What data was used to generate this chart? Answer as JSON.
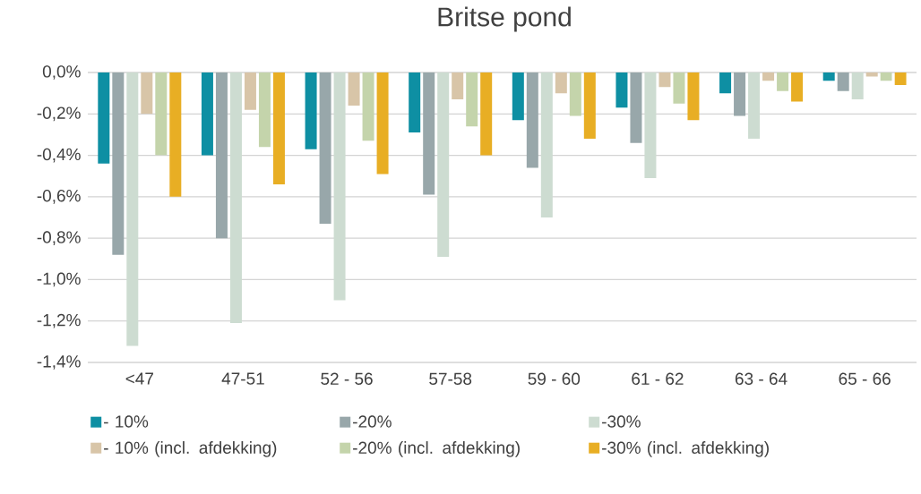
{
  "chart_data": {
    "type": "bar",
    "title": "Britse pond",
    "categories": [
      "<47",
      "47-51",
      "52 - 56",
      "57-58",
      "59 - 60",
      "61 - 62",
      "63 - 64",
      "65 - 66"
    ],
    "series": [
      {
        "name": "- 10%",
        "color": "#0e8fa3",
        "values": [
          -0.44,
          -0.4,
          -0.37,
          -0.29,
          -0.23,
          -0.17,
          -0.1,
          -0.04
        ]
      },
      {
        "name": "-20%",
        "color": "#98a7aa",
        "values": [
          -0.88,
          -0.8,
          -0.73,
          -0.59,
          -0.46,
          -0.34,
          -0.21,
          -0.09
        ]
      },
      {
        "name": "-30%",
        "color": "#cddcd1",
        "values": [
          -1.32,
          -1.21,
          -1.1,
          -0.89,
          -0.7,
          -0.51,
          -0.32,
          -0.13
        ]
      },
      {
        "name": "- 10% (incl. afdekking)",
        "color": "#d8c5a8",
        "values": [
          -0.2,
          -0.18,
          -0.16,
          -0.13,
          -0.1,
          -0.07,
          -0.04,
          -0.02
        ]
      },
      {
        "name": "-20% (incl. afdekking)",
        "color": "#c4d4ab",
        "values": [
          -0.4,
          -0.36,
          -0.33,
          -0.26,
          -0.21,
          -0.15,
          -0.09,
          -0.04
        ]
      },
      {
        "name": "-30% (incl. afdekking)",
        "color": "#e8ae24",
        "values": [
          -0.6,
          -0.54,
          -0.49,
          -0.4,
          -0.32,
          -0.23,
          -0.14,
          -0.06
        ]
      }
    ],
    "ylim": [
      -1.4,
      0
    ],
    "yticks": [
      {
        "value": 0,
        "label": "0,0%"
      },
      {
        "value": -0.2,
        "label": "-0,2%"
      },
      {
        "value": -0.4,
        "label": "-0,4%"
      },
      {
        "value": -0.6,
        "label": "-0,6%"
      },
      {
        "value": -0.8,
        "label": "-0,8%"
      },
      {
        "value": -1.0,
        "label": "-1,0%"
      },
      {
        "value": -1.2,
        "label": "-1,2%"
      },
      {
        "value": -1.4,
        "label": "-1,4%"
      }
    ],
    "grid": true,
    "legend": "bottom"
  }
}
